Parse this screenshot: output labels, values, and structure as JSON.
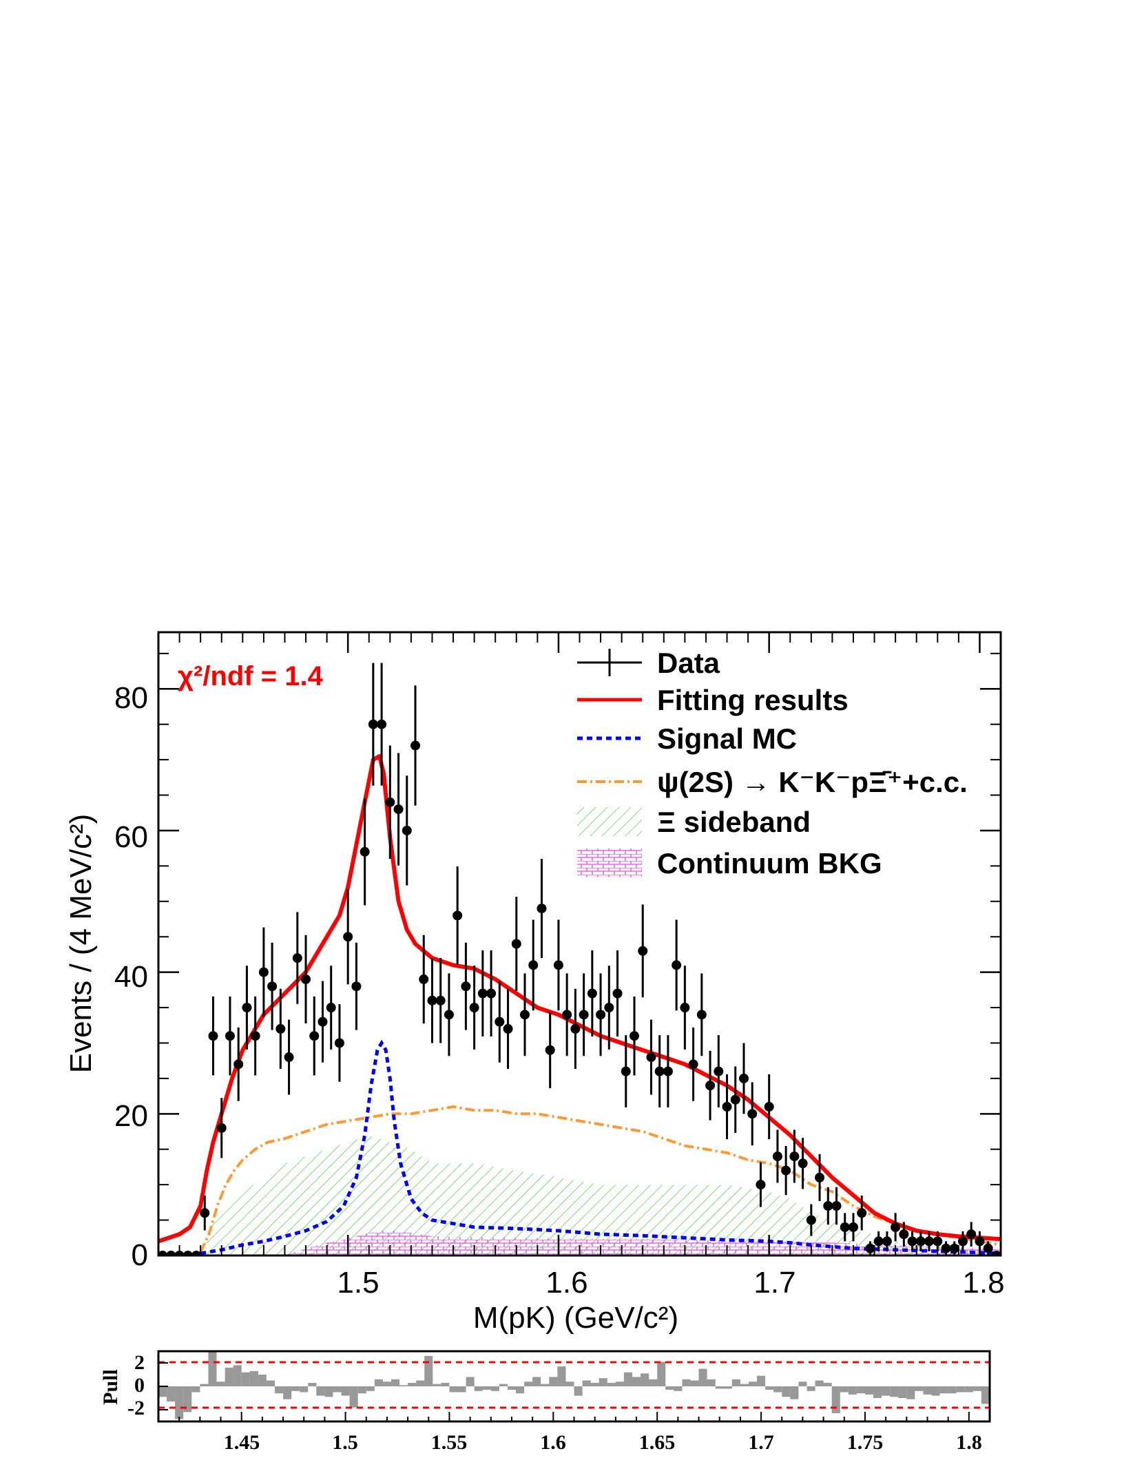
{
  "chart_data": [
    {
      "type": "scatter",
      "title": "",
      "xlabel": "M(pK) (GeV/c²)",
      "ylabel": "Events / (4 MeV/c²)",
      "xlim": [
        1.41,
        1.81
      ],
      "ylim": [
        0,
        88
      ],
      "xticks": [
        "1.5",
        "1.6",
        "1.7",
        "1.8"
      ],
      "yticks": [
        "0",
        "20",
        "40",
        "60",
        "80"
      ],
      "annotation": "χ²/ndf = 1.4",
      "legend": {
        "position": "top-right",
        "entries": [
          {
            "label": "Data",
            "style": "marker-errorbar",
            "color": "#000000"
          },
          {
            "label": "Fitting results",
            "style": "solid-line",
            "color": "#ff0000"
          },
          {
            "label": "Signal MC",
            "style": "dashed-line",
            "color": "#0000ff"
          },
          {
            "label": "ψ(2S) → K⁻K⁻pΞ̄⁺+c.c.",
            "style": "dash-dot-line",
            "color": "#ff9933"
          },
          {
            "label": "Ξ sideband",
            "style": "hatch",
            "color": "#33cc33"
          },
          {
            "label": "Continuum BKG",
            "style": "brick-hatch",
            "color": "#ff00ff"
          }
        ]
      },
      "data_points": {
        "x": [
          1.412,
          1.416,
          1.42,
          1.424,
          1.428,
          1.432,
          1.436,
          1.44,
          1.444,
          1.448,
          1.452,
          1.456,
          1.46,
          1.464,
          1.468,
          1.472,
          1.476,
          1.48,
          1.484,
          1.488,
          1.492,
          1.496,
          1.5,
          1.504,
          1.508,
          1.512,
          1.516,
          1.52,
          1.524,
          1.528,
          1.532,
          1.536,
          1.54,
          1.544,
          1.548,
          1.552,
          1.556,
          1.56,
          1.564,
          1.568,
          1.572,
          1.576,
          1.58,
          1.584,
          1.588,
          1.592,
          1.596,
          1.6,
          1.604,
          1.608,
          1.612,
          1.616,
          1.62,
          1.624,
          1.628,
          1.632,
          1.636,
          1.64,
          1.644,
          1.648,
          1.652,
          1.656,
          1.66,
          1.664,
          1.668,
          1.672,
          1.676,
          1.68,
          1.684,
          1.688,
          1.692,
          1.696,
          1.7,
          1.704,
          1.708,
          1.712,
          1.716,
          1.72,
          1.724,
          1.728,
          1.732,
          1.736,
          1.74,
          1.744,
          1.748,
          1.752,
          1.756,
          1.76,
          1.764,
          1.768,
          1.772,
          1.776,
          1.78,
          1.784,
          1.788,
          1.792,
          1.796,
          1.8,
          1.804,
          1.808
        ],
        "y": [
          0,
          0,
          0,
          0,
          0,
          6,
          31,
          18,
          31,
          27,
          35,
          31,
          40,
          38,
          32,
          28,
          42,
          39,
          31,
          33,
          35,
          30,
          45,
          38,
          57,
          75,
          75,
          64,
          63,
          60,
          72,
          39,
          36,
          36,
          34,
          48,
          38,
          35,
          37,
          37,
          33,
          32,
          44,
          34,
          41,
          49,
          29,
          41,
          34,
          32,
          34,
          37,
          34,
          35,
          37,
          26,
          31,
          43,
          28,
          26,
          26,
          41,
          35,
          27,
          34,
          24,
          26,
          21,
          22,
          25,
          20,
          10,
          21,
          14,
          12,
          14,
          13,
          5,
          11,
          7,
          7,
          4,
          4,
          6,
          1,
          2,
          2,
          4,
          3,
          2,
          2,
          2,
          2,
          1,
          1,
          2,
          3,
          2,
          1,
          0
        ]
      },
      "series": [
        {
          "name": "Fitting results",
          "x": [
            1.41,
            1.42,
            1.425,
            1.43,
            1.433,
            1.436,
            1.44,
            1.445,
            1.45,
            1.46,
            1.47,
            1.48,
            1.49,
            1.496,
            1.5,
            1.504,
            1.508,
            1.512,
            1.515,
            1.517,
            1.52,
            1.524,
            1.528,
            1.532,
            1.536,
            1.54,
            1.55,
            1.56,
            1.57,
            1.58,
            1.59,
            1.6,
            1.61,
            1.62,
            1.63,
            1.64,
            1.65,
            1.66,
            1.67,
            1.68,
            1.69,
            1.7,
            1.71,
            1.72,
            1.73,
            1.74,
            1.75,
            1.76,
            1.77,
            1.78,
            1.79,
            1.8,
            1.81
          ],
          "y": [
            2.0,
            3.0,
            4.0,
            7.0,
            12.0,
            16.0,
            20.0,
            25.0,
            29.0,
            34.0,
            37.0,
            40.0,
            45.0,
            48.0,
            52.0,
            58.0,
            64.0,
            70.0,
            70.5,
            68.0,
            59.0,
            50.0,
            46.0,
            44.0,
            43.0,
            42.0,
            41.0,
            40.5,
            39.0,
            37.0,
            35.0,
            34.0,
            32.5,
            31.0,
            30.0,
            29.0,
            28.0,
            27.0,
            25.5,
            24.0,
            22.0,
            19.5,
            17.0,
            14.0,
            11.0,
            8.5,
            6.0,
            4.5,
            3.5,
            3.0,
            2.7,
            2.5,
            2.3
          ]
        },
        {
          "name": "Signal MC",
          "x": [
            1.43,
            1.44,
            1.45,
            1.46,
            1.47,
            1.48,
            1.49,
            1.498,
            1.504,
            1.508,
            1.511,
            1.514,
            1.516,
            1.518,
            1.52,
            1.522,
            1.525,
            1.53,
            1.535,
            1.54,
            1.55,
            1.56,
            1.58,
            1.6,
            1.62,
            1.64,
            1.66,
            1.68,
            1.7,
            1.71,
            1.72,
            1.74,
            1.76,
            1.78,
            1.8,
            1.81
          ],
          "y": [
            0.3,
            0.8,
            1.5,
            2.0,
            2.7,
            3.5,
            4.8,
            7.0,
            11.0,
            17.0,
            24.0,
            29.0,
            30.0,
            29.0,
            25.0,
            19.0,
            13.0,
            8.0,
            6.0,
            5.0,
            4.5,
            4.0,
            3.8,
            3.5,
            3.0,
            2.8,
            2.5,
            2.2,
            2.0,
            1.8,
            1.5,
            1.0,
            0.8,
            0.6,
            0.4,
            0.3
          ]
        },
        {
          "name": "ψ(2S) → K⁻K⁻pΞ̄⁺+c.c.",
          "x": [
            1.43,
            1.434,
            1.438,
            1.442,
            1.446,
            1.45,
            1.456,
            1.462,
            1.47,
            1.48,
            1.49,
            1.5,
            1.51,
            1.52,
            1.53,
            1.54,
            1.55,
            1.56,
            1.57,
            1.58,
            1.59,
            1.6,
            1.61,
            1.62,
            1.63,
            1.64,
            1.65,
            1.66,
            1.67,
            1.68,
            1.69,
            1.7,
            1.71,
            1.72,
            1.73,
            1.74,
            1.75,
            1.76,
            1.77,
            1.78,
            1.79,
            1.8,
            1.81
          ],
          "y": [
            0.5,
            3.0,
            7.0,
            10.0,
            12.0,
            13.5,
            15.0,
            16.0,
            16.5,
            17.5,
            18.5,
            19.0,
            19.5,
            20.0,
            20.0,
            20.5,
            21.0,
            20.5,
            20.5,
            20.0,
            20.0,
            19.5,
            19.0,
            18.5,
            18.0,
            17.5,
            16.5,
            15.5,
            15.0,
            14.5,
            13.5,
            13.0,
            12.0,
            10.0,
            9.0,
            7.0,
            5.5,
            4.5,
            3.5,
            3.0,
            2.5,
            2.0,
            1.5
          ]
        },
        {
          "name": "Ξ sideband",
          "x": [
            1.43,
            1.436,
            1.44,
            1.45,
            1.46,
            1.47,
            1.48,
            1.49,
            1.5,
            1.51,
            1.52,
            1.53,
            1.54,
            1.56,
            1.58,
            1.6,
            1.62,
            1.64,
            1.66,
            1.68,
            1.7,
            1.71,
            1.72,
            1.73,
            1.74,
            1.75,
            1.76,
            1.77,
            1.78,
            1.79,
            1.8,
            1.81
          ],
          "y": [
            0,
            5,
            7,
            9,
            11,
            13,
            14,
            15,
            16,
            17,
            16,
            15,
            13,
            13,
            12,
            11,
            10,
            10,
            10,
            10,
            9,
            8,
            6,
            5,
            3.5,
            3,
            2,
            1.5,
            1.5,
            1,
            1,
            0.5
          ]
        },
        {
          "name": "Continuum BKG",
          "x": [
            1.43,
            1.47,
            1.48,
            1.49,
            1.5,
            1.51,
            1.52,
            1.53,
            1.54,
            1.56,
            1.58,
            1.6,
            1.62,
            1.64,
            1.66,
            1.68,
            1.7,
            1.72,
            1.74,
            1.76,
            1.78,
            1.8,
            1.81
          ],
          "y": [
            0,
            0,
            1.0,
            1.8,
            2.4,
            3.2,
            3.6,
            3.2,
            2.7,
            2.6,
            2.5,
            2.4,
            2.3,
            2.3,
            2.2,
            2.1,
            2.0,
            1.9,
            1.7,
            1.5,
            1.2,
            1.0,
            0.8
          ]
        }
      ]
    },
    {
      "type": "bar",
      "title": "",
      "ylabel": "Pull",
      "xlim": [
        1.41,
        1.81
      ],
      "ylim": [
        -3,
        3
      ],
      "xticks": [
        "1.45",
        "1.5",
        "1.55",
        "1.6",
        "1.65",
        "1.7",
        "1.75",
        "1.8"
      ],
      "yticks": [
        "2",
        "0",
        "-2"
      ],
      "reference_lines": [
        2,
        -2
      ],
      "values": [
        -0.9,
        -1.3,
        -2.8,
        -2.2,
        -0.5,
        0.2,
        3.2,
        0.4,
        1.6,
        1.8,
        1.2,
        1.3,
        1.0,
        0.5,
        -0.6,
        -1.1,
        -0.4,
        -0.5,
        0.3,
        -0.8,
        -0.9,
        -0.5,
        -0.8,
        -1.8,
        -0.6,
        -0.4,
        0.6,
        0.4,
        0.6,
        0.1,
        0.3,
        0.5,
        2.6,
        0.2,
        0.3,
        -0.5,
        -0.5,
        0.8,
        -0.4,
        -0.3,
        -0.4,
        0.2,
        -0.3,
        -0.6,
        0.4,
        0.8,
        0.2,
        0.8,
        1.7,
        0.4,
        -0.8,
        0.5,
        0.3,
        0.7,
        0.3,
        0.4,
        1.2,
        0.8,
        1.1,
        0.6,
        2.1,
        -0.3,
        -0.4,
        0.6,
        0.5,
        1.5,
        0.6,
        -0.2,
        -0.2,
        0.6,
        0.2,
        0.4,
        0.9,
        -0.3,
        -0.5,
        -0.9,
        -1.1,
        0.4,
        -0.4,
        0.5,
        0.3,
        -2.3,
        -0.5,
        -0.7,
        -0.6,
        -0.7,
        -1.0,
        -0.8,
        -0.9,
        -1.0,
        -1.1,
        -0.4,
        -0.7,
        -0.8,
        -0.6,
        -0.6,
        -0.5,
        -0.5,
        -0.4,
        -1.5
      ]
    }
  ]
}
